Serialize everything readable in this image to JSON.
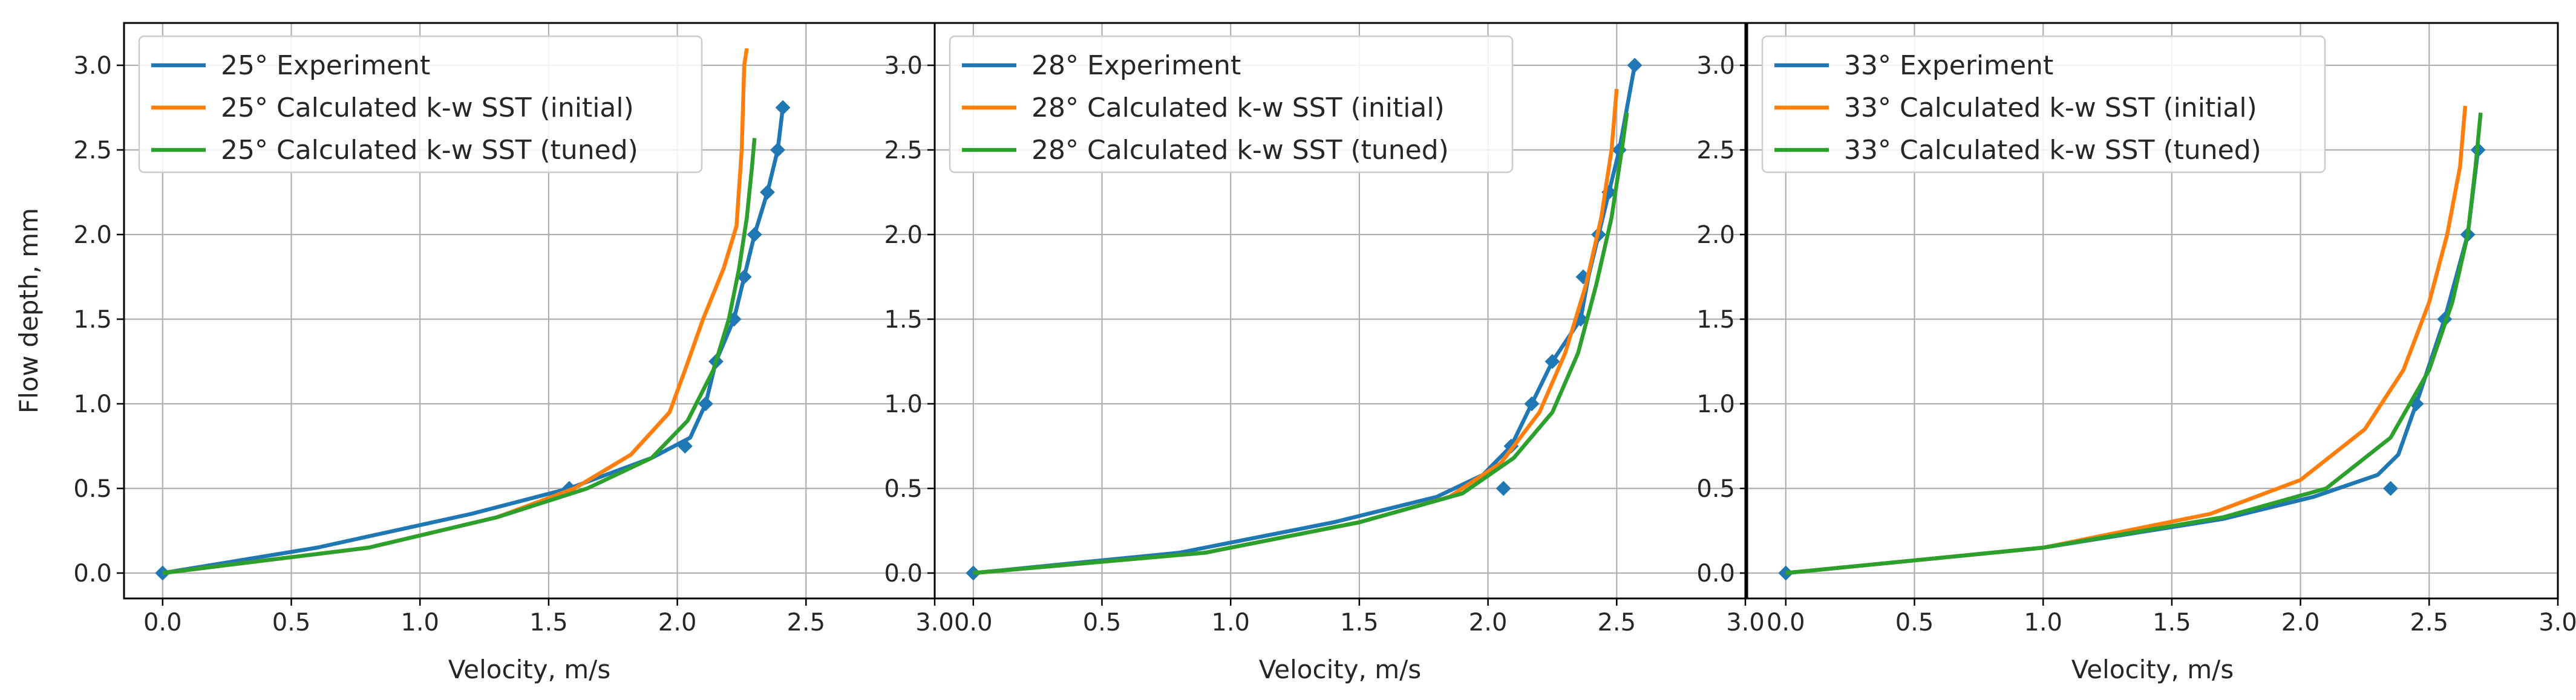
{
  "chart_data": [
    {
      "type": "line",
      "xlabel": "Velocity, m/s",
      "ylabel": "Flow depth, mm",
      "xlim": [
        -0.15,
        3.0
      ],
      "ylim": [
        -0.15,
        3.25
      ],
      "xticks": [
        "0.0",
        "0.5",
        "1.0",
        "1.5",
        "2.0",
        "2.5",
        "3.0"
      ],
      "yticks": [
        "0.0",
        "0.5",
        "1.0",
        "1.5",
        "2.0",
        "2.5",
        "3.0"
      ],
      "grid": true,
      "legend_position": "top-left",
      "series": [
        {
          "name": "25° Experiment",
          "color": "#1f77b4",
          "marker": "diamond",
          "points": [
            [
              0.0,
              0.0
            ],
            [
              1.58,
              0.5
            ],
            [
              2.03,
              0.75
            ],
            [
              2.11,
              1.0
            ],
            [
              2.15,
              1.25
            ],
            [
              2.22,
              1.5
            ],
            [
              2.26,
              1.75
            ],
            [
              2.3,
              2.0
            ],
            [
              2.35,
              2.25
            ],
            [
              2.39,
              2.5
            ],
            [
              2.41,
              2.75
            ]
          ],
          "curve": [
            [
              0.0,
              0.0
            ],
            [
              0.6,
              0.15
            ],
            [
              1.2,
              0.35
            ],
            [
              1.58,
              0.5
            ],
            [
              1.9,
              0.68
            ],
            [
              2.05,
              0.8
            ],
            [
              2.11,
              1.0
            ],
            [
              2.15,
              1.25
            ],
            [
              2.22,
              1.5
            ],
            [
              2.26,
              1.75
            ],
            [
              2.3,
              2.0
            ],
            [
              2.35,
              2.25
            ],
            [
              2.39,
              2.5
            ],
            [
              2.41,
              2.75
            ]
          ]
        },
        {
          "name": "25° Calculated k-w SST (initial)",
          "color": "#ff7f0e",
          "curve": [
            [
              0.0,
              0.0
            ],
            [
              0.8,
              0.15
            ],
            [
              1.3,
              0.33
            ],
            [
              1.6,
              0.5
            ],
            [
              1.82,
              0.7
            ],
            [
              1.97,
              0.95
            ],
            [
              2.03,
              1.2
            ],
            [
              2.1,
              1.5
            ],
            [
              2.18,
              1.8
            ],
            [
              2.23,
              2.05
            ],
            [
              2.25,
              2.5
            ],
            [
              2.26,
              3.0
            ],
            [
              2.27,
              3.1
            ]
          ]
        },
        {
          "name": "25° Calculated k-w SST (tuned)",
          "color": "#2ca02c",
          "curve": [
            [
              0.0,
              0.0
            ],
            [
              0.8,
              0.15
            ],
            [
              1.3,
              0.33
            ],
            [
              1.65,
              0.5
            ],
            [
              1.9,
              0.68
            ],
            [
              2.04,
              0.9
            ],
            [
              2.14,
              1.2
            ],
            [
              2.2,
              1.5
            ],
            [
              2.24,
              1.8
            ],
            [
              2.27,
              2.1
            ],
            [
              2.29,
              2.4
            ],
            [
              2.3,
              2.57
            ]
          ]
        }
      ]
    },
    {
      "type": "line",
      "xlabel": "Velocity, m/s",
      "ylabel": "",
      "xlim": [
        -0.15,
        3.0
      ],
      "ylim": [
        -0.15,
        3.25
      ],
      "xticks": [
        "0.0",
        "0.5",
        "1.0",
        "1.5",
        "2.0",
        "2.5",
        "3.0"
      ],
      "yticks": [
        "0.0",
        "0.5",
        "1.0",
        "1.5",
        "2.0",
        "2.5",
        "3.0"
      ],
      "grid": true,
      "legend_position": "top-left",
      "series": [
        {
          "name": "28° Experiment",
          "color": "#1f77b4",
          "marker": "diamond",
          "points": [
            [
              0.0,
              0.0
            ],
            [
              2.06,
              0.5
            ],
            [
              2.09,
              0.75
            ],
            [
              2.17,
              1.0
            ],
            [
              2.25,
              1.25
            ],
            [
              2.36,
              1.5
            ],
            [
              2.37,
              1.75
            ],
            [
              2.43,
              2.0
            ],
            [
              2.47,
              2.25
            ],
            [
              2.51,
              2.5
            ],
            [
              2.57,
              3.0
            ]
          ],
          "curve": [
            [
              0.0,
              0.0
            ],
            [
              0.8,
              0.12
            ],
            [
              1.4,
              0.3
            ],
            [
              1.8,
              0.45
            ],
            [
              1.98,
              0.58
            ],
            [
              2.09,
              0.75
            ],
            [
              2.17,
              1.0
            ],
            [
              2.25,
              1.25
            ],
            [
              2.36,
              1.5
            ],
            [
              2.39,
              1.75
            ],
            [
              2.43,
              2.0
            ],
            [
              2.47,
              2.25
            ],
            [
              2.51,
              2.5
            ],
            [
              2.57,
              3.0
            ]
          ]
        },
        {
          "name": "28° Calculated k-w SST (initial)",
          "color": "#ff7f0e",
          "curve": [
            [
              0.0,
              0.0
            ],
            [
              0.9,
              0.12
            ],
            [
              1.5,
              0.3
            ],
            [
              1.85,
              0.45
            ],
            [
              2.05,
              0.65
            ],
            [
              2.2,
              0.95
            ],
            [
              2.3,
              1.3
            ],
            [
              2.38,
              1.7
            ],
            [
              2.44,
              2.1
            ],
            [
              2.48,
              2.5
            ],
            [
              2.5,
              2.86
            ]
          ]
        },
        {
          "name": "28° Calculated k-w SST (tuned)",
          "color": "#2ca02c",
          "curve": [
            [
              0.0,
              0.0
            ],
            [
              0.9,
              0.12
            ],
            [
              1.5,
              0.3
            ],
            [
              1.9,
              0.47
            ],
            [
              2.1,
              0.68
            ],
            [
              2.25,
              0.95
            ],
            [
              2.35,
              1.3
            ],
            [
              2.42,
              1.7
            ],
            [
              2.48,
              2.1
            ],
            [
              2.52,
              2.5
            ],
            [
              2.54,
              2.72
            ]
          ]
        }
      ]
    },
    {
      "type": "line",
      "xlabel": "Velocity, m/s",
      "ylabel": "",
      "xlim": [
        -0.15,
        3.0
      ],
      "ylim": [
        -0.15,
        3.25
      ],
      "xticks": [
        "0.0",
        "0.5",
        "1.0",
        "1.5",
        "2.0",
        "2.5",
        "3.0"
      ],
      "yticks": [
        "0.0",
        "0.5",
        "1.0",
        "1.5",
        "2.0",
        "2.5",
        "3.0"
      ],
      "grid": true,
      "legend_position": "top-left",
      "series": [
        {
          "name": "33° Experiment",
          "color": "#1f77b4",
          "marker": "diamond",
          "points": [
            [
              0.0,
              0.0
            ],
            [
              2.35,
              0.5
            ],
            [
              2.45,
              1.0
            ],
            [
              2.56,
              1.5
            ],
            [
              2.65,
              2.0
            ],
            [
              2.69,
              2.5
            ]
          ],
          "curve": [
            [
              0.0,
              0.0
            ],
            [
              1.0,
              0.15
            ],
            [
              1.7,
              0.32
            ],
            [
              2.05,
              0.45
            ],
            [
              2.3,
              0.58
            ],
            [
              2.38,
              0.7
            ],
            [
              2.45,
              1.0
            ],
            [
              2.56,
              1.5
            ],
            [
              2.65,
              2.0
            ],
            [
              2.69,
              2.5
            ]
          ]
        },
        {
          "name": "33° Calculated k-w SST (initial)",
          "color": "#ff7f0e",
          "curve": [
            [
              0.0,
              0.0
            ],
            [
              1.0,
              0.15
            ],
            [
              1.65,
              0.35
            ],
            [
              2.0,
              0.55
            ],
            [
              2.25,
              0.85
            ],
            [
              2.4,
              1.2
            ],
            [
              2.5,
              1.6
            ],
            [
              2.57,
              2.0
            ],
            [
              2.62,
              2.4
            ],
            [
              2.64,
              2.76
            ]
          ]
        },
        {
          "name": "33° Calculated k-w SST (tuned)",
          "color": "#2ca02c",
          "curve": [
            [
              0.0,
              0.0
            ],
            [
              1.0,
              0.15
            ],
            [
              1.7,
              0.33
            ],
            [
              2.1,
              0.5
            ],
            [
              2.35,
              0.8
            ],
            [
              2.5,
              1.2
            ],
            [
              2.59,
              1.6
            ],
            [
              2.65,
              2.0
            ],
            [
              2.68,
              2.4
            ],
            [
              2.7,
              2.72
            ]
          ]
        }
      ]
    }
  ]
}
